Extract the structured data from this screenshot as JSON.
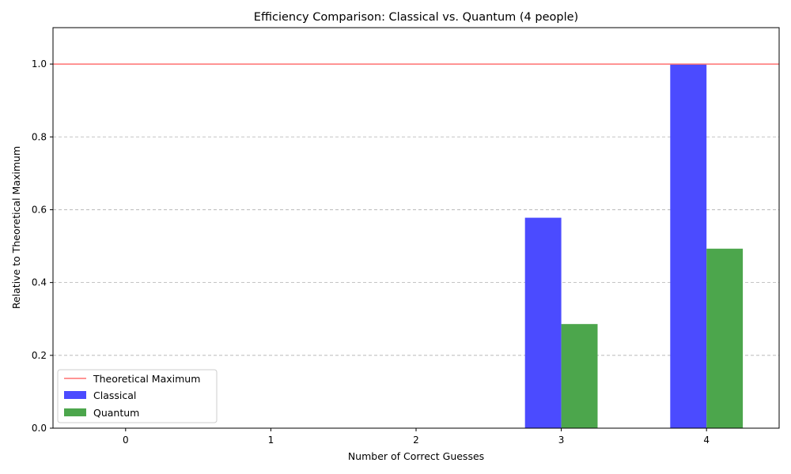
{
  "chart_data": {
    "type": "bar",
    "title": "Efficiency Comparison: Classical vs. Quantum (4 people)",
    "xlabel": "Number of Correct Guesses",
    "ylabel": "Relative to Theoretical Maximum",
    "categories": [
      "0",
      "1",
      "2",
      "3",
      "4"
    ],
    "series": [
      {
        "name": "Classical",
        "values": [
          0,
          0,
          0,
          0.578,
          1.0
        ],
        "color": "#4b4bff"
      },
      {
        "name": "Quantum",
        "values": [
          0,
          0,
          0,
          0.286,
          0.493
        ],
        "color": "#4ca64c"
      }
    ],
    "reference_line": {
      "name": "Theoretical Maximum",
      "value": 1.0,
      "color": "#ff7070"
    },
    "xlim": [
      -0.5,
      4.5
    ],
    "ylim": [
      0,
      1.1
    ],
    "yticks": [
      "0.0",
      "0.2",
      "0.4",
      "0.6",
      "0.8",
      "1.0"
    ],
    "grid": "horizontal dashed",
    "legend": "lower-left"
  }
}
